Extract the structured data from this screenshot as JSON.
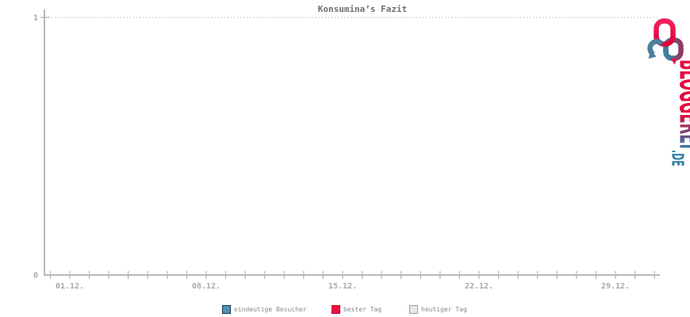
{
  "chart_data": {
    "type": "line",
    "title": "Konsumina’s Fazit",
    "x_tick_labels": [
      "01.12.",
      "08.12.",
      "15.12.",
      "22.12.",
      "29.12."
    ],
    "y_tick_labels": [
      "0",
      "1"
    ],
    "ylim": [
      0,
      1
    ],
    "x_axis": {
      "minor_tick_interval_days": 1,
      "major_tick_interval_days": 7
    },
    "grid": {
      "horizontal_dotted_at_y": 1
    },
    "legend_position": "bottom",
    "series": [
      {
        "name": "eindeutige Besucher",
        "color": "#4d94b0",
        "border_color": "#16394e",
        "values": []
      },
      {
        "name": "bester Tag",
        "color": "#ef0f3e",
        "border_color": "#b30b30",
        "values": []
      },
      {
        "name": "heutiger Tag",
        "color": "#e8e8e8",
        "border_color": "#9a9a9a",
        "values": []
      }
    ]
  },
  "logo": {
    "brand": "BLOGGEREI",
    "tld": ".DE"
  },
  "colors": {
    "axis": "#b9b9b9",
    "tick_label": "#a9a9a9",
    "title_text": "#6e6e6e",
    "legend_text": "#8a8a8a",
    "grid_dotted": "#c9c9c9",
    "logo_red": "#e6073f",
    "logo_teal": "#4b7f9d",
    "logo_purple": "#8c3a62",
    "logo_blue": "#2f7fa3"
  }
}
